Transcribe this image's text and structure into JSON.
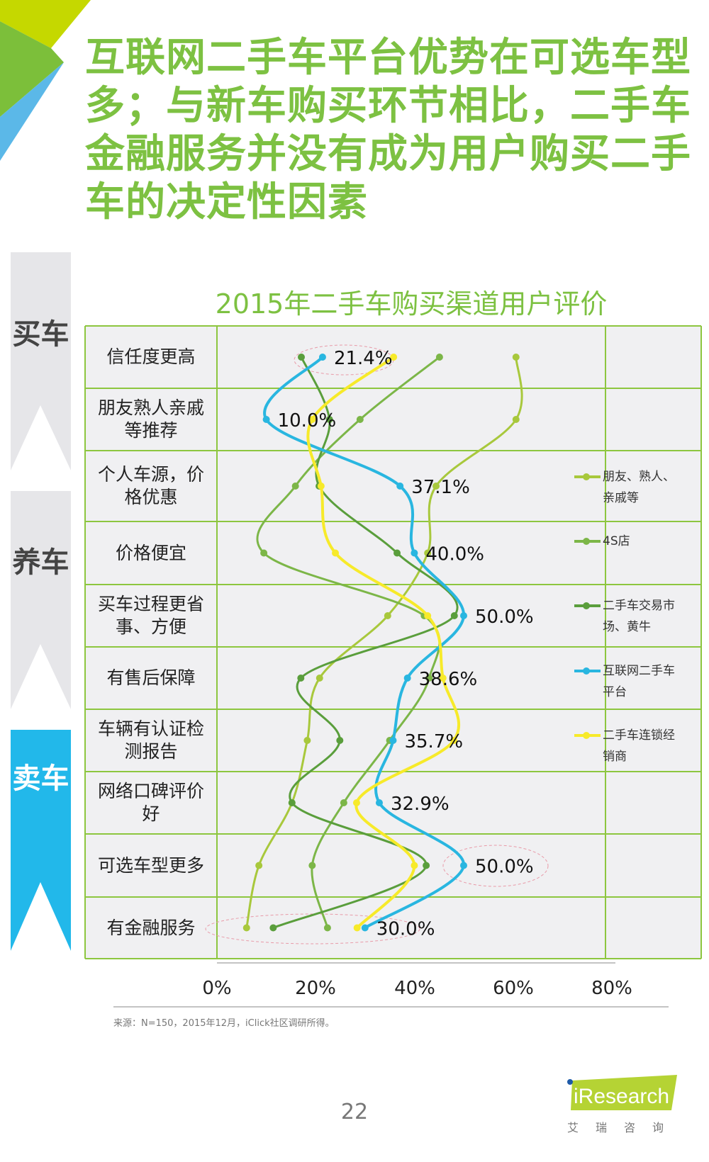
{
  "title": "互联网二手车平台优势在可选车型多；与新车购买环节相比，二手车金融服务并没有成为用户购买二手车的决定性因素",
  "sidebar": [
    {
      "label": "买车",
      "color": "#e6e6e9",
      "text_color": "#444444"
    },
    {
      "label": "养车",
      "color": "#e6e6e9",
      "text_color": "#444444"
    },
    {
      "label": "卖车",
      "color": "#22b8ea",
      "text_color": "#ffffff"
    }
  ],
  "chart_data": {
    "type": "line",
    "orientation": "horizontal",
    "title": "2015年二手车购买渠道用户评价",
    "categories": [
      "信任度更高",
      "朋友熟人亲戚等推荐",
      "个人车源，价格优惠",
      "价格便宜",
      "买车过程更省事、方便",
      "有售后保障",
      "车辆有认证检测报告",
      "网络口碑评价好",
      "可选车型更多",
      "有金融服务"
    ],
    "xlim": [
      0,
      80
    ],
    "x_ticks": [
      "0%",
      "20%",
      "40%",
      "60%",
      "80%"
    ],
    "grid": true,
    "legend_position": "right",
    "series": [
      {
        "name": "朋友、熟人、亲戚等",
        "color": "#a8c83c",
        "values": [
          60.6,
          60.6,
          44.4,
          42.7,
          34.6,
          20.8,
          18.3,
          15.2,
          8.5,
          6.0
        ]
      },
      {
        "name": "4S店",
        "color": "#7cb648",
        "values": [
          45.1,
          29.0,
          15.9,
          9.5,
          42.0,
          43.0,
          35.0,
          25.7,
          19.3,
          22.4
        ]
      },
      {
        "name": "二手车交易市场、黄牛",
        "color": "#5a9e3c",
        "values": [
          17.1,
          22.8,
          20.7,
          36.5,
          48.1,
          17.0,
          24.9,
          15.2,
          42.4,
          11.4
        ]
      },
      {
        "name": "互联网二手车平台",
        "color": "#29b6e0",
        "values": [
          21.4,
          10.0,
          37.1,
          40.0,
          50.0,
          38.6,
          35.7,
          32.9,
          50.0,
          30.0
        ],
        "data_labels": [
          "21.4%",
          "10.0%",
          "37.1%",
          "40.0%",
          "50.0%",
          "38.6%",
          "35.7%",
          "32.9%",
          "50.0%",
          "30.0%"
        ]
      },
      {
        "name": "二手车连锁经销商",
        "color": "#f7ea2a",
        "values": [
          35.8,
          19.3,
          21.1,
          24.0,
          42.7,
          45.8,
          48.0,
          28.3,
          40.0,
          28.4
        ]
      }
    ],
    "highlighted_categories": [
      "信任度更高",
      "可选车型更多",
      "有金融服务"
    ]
  },
  "legend_lines": [
    [
      "朋友、熟人、",
      "亲戚等"
    ],
    [
      "4S店"
    ],
    [
      "二手车交易市",
      "场、黄牛"
    ],
    [
      "互联网二手车",
      "平台"
    ],
    [
      "二手车连锁经",
      "销商"
    ]
  ],
  "row_label_lines": [
    [
      "信任度更高"
    ],
    [
      "朋友熟人亲戚",
      "等推荐"
    ],
    [
      "个人车源，价",
      "格优惠"
    ],
    [
      "价格便宜"
    ],
    [
      "买车过程更省",
      "事、方便"
    ],
    [
      "有售后保障"
    ],
    [
      "车辆有认证检",
      "测报告"
    ],
    [
      "网络口碑评价",
      "好"
    ],
    [
      "可选车型更多"
    ],
    [
      "有金融服务"
    ]
  ],
  "source": "来源：N=150，2015年12月，iClick社区调研所得。",
  "page_number": "22",
  "logo": {
    "text": "iResearch",
    "cn": "艾瑞咨询",
    "color": "#b5d334"
  }
}
